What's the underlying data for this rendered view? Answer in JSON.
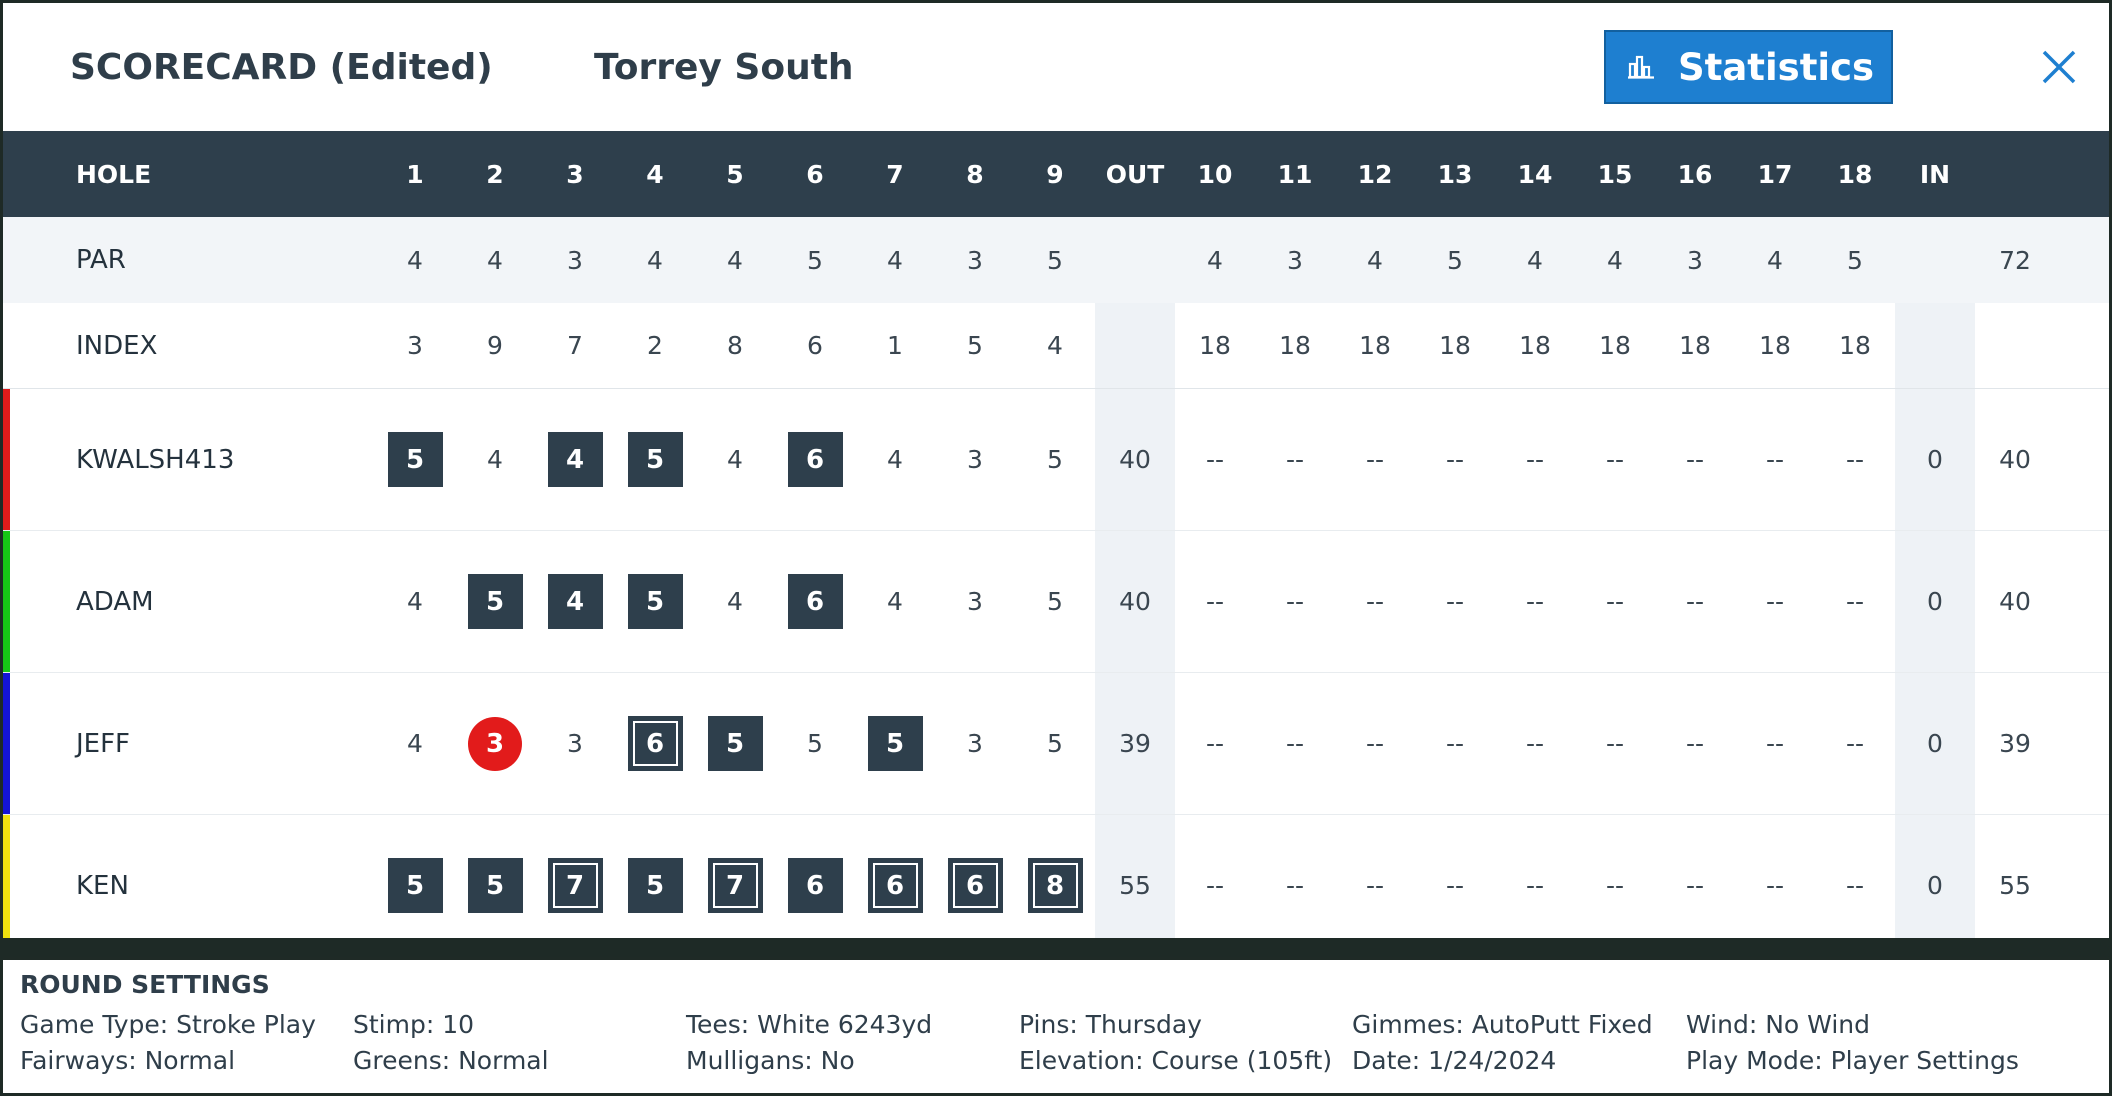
{
  "header": {
    "title": "SCORECARD (Edited)",
    "course": "Torrey South",
    "statistics_label": "Statistics",
    "statistics_icon": "bar-chart-icon",
    "close_icon": "close-icon",
    "accent_color": "#1e7fd0"
  },
  "columns": [
    "1",
    "2",
    "3",
    "4",
    "5",
    "6",
    "7",
    "8",
    "9",
    "OUT",
    "10",
    "11",
    "12",
    "13",
    "14",
    "15",
    "16",
    "17",
    "18",
    "IN",
    ""
  ],
  "rows": {
    "hole_label": "HOLE",
    "par": {
      "label": "PAR",
      "values": [
        "4",
        "4",
        "3",
        "4",
        "4",
        "5",
        "4",
        "3",
        "5",
        "",
        "4",
        "3",
        "4",
        "5",
        "4",
        "4",
        "3",
        "4",
        "5",
        "",
        "72"
      ]
    },
    "index": {
      "label": "INDEX",
      "values": [
        "3",
        "9",
        "7",
        "2",
        "8",
        "6",
        "1",
        "5",
        "4",
        "",
        "18",
        "18",
        "18",
        "18",
        "18",
        "18",
        "18",
        "18",
        "18",
        "",
        ""
      ]
    }
  },
  "players": [
    {
      "name": "KWALSH413",
      "color": "#e01b1b",
      "scores": [
        "5",
        "4",
        "4",
        "5",
        "4",
        "6",
        "4",
        "3",
        "5",
        "40",
        "--",
        "--",
        "--",
        "--",
        "--",
        "--",
        "--",
        "--",
        "--",
        "0",
        "40"
      ],
      "marks": [
        "box",
        "",
        "box",
        "box",
        "",
        "box",
        "",
        "",
        "",
        "",
        "",
        "",
        "",
        "",
        "",
        "",
        "",
        "",
        "",
        "",
        ""
      ]
    },
    {
      "name": "ADAM",
      "color": "#16c716",
      "scores": [
        "4",
        "5",
        "4",
        "5",
        "4",
        "6",
        "4",
        "3",
        "5",
        "40",
        "--",
        "--",
        "--",
        "--",
        "--",
        "--",
        "--",
        "--",
        "--",
        "0",
        "40"
      ],
      "marks": [
        "",
        "box",
        "box",
        "box",
        "",
        "box",
        "",
        "",
        "",
        "",
        "",
        "",
        "",
        "",
        "",
        "",
        "",
        "",
        "",
        "",
        ""
      ]
    },
    {
      "name": "JEFF",
      "color": "#1414d6",
      "scores": [
        "4",
        "3",
        "3",
        "6",
        "5",
        "5",
        "5",
        "3",
        "5",
        "39",
        "--",
        "--",
        "--",
        "--",
        "--",
        "--",
        "--",
        "--",
        "--",
        "0",
        "39"
      ],
      "marks": [
        "",
        "circle",
        "",
        "double",
        "box",
        "",
        "box",
        "",
        "",
        "",
        "",
        "",
        "",
        "",
        "",
        "",
        "",
        "",
        "",
        "",
        ""
      ]
    },
    {
      "name": "KEN",
      "color": "#f0e10f",
      "scores": [
        "5",
        "5",
        "7",
        "5",
        "7",
        "6",
        "6",
        "6",
        "8",
        "55",
        "--",
        "--",
        "--",
        "--",
        "--",
        "--",
        "--",
        "--",
        "--",
        "0",
        "55"
      ],
      "marks": [
        "box",
        "box",
        "double",
        "box",
        "double",
        "box",
        "double",
        "double",
        "double",
        "",
        "",
        "",
        "",
        "",
        "",
        "",
        "",
        "",
        "",
        "",
        ""
      ]
    }
  ],
  "round_settings": {
    "title": "ROUND SETTINGS",
    "game_type": "Game Type: Stroke Play",
    "fairways": "Fairways: Normal",
    "stimp": "Stimp: 10",
    "greens": "Greens: Normal",
    "tees": "Tees: White 6243yd",
    "mulligans": "Mulligans: No",
    "pins": "Pins: Thursday",
    "elevation": "Elevation: Course (105ft)",
    "gimmes": "Gimmes: AutoPutt Fixed",
    "date": "Date: 1/24/2024",
    "wind": "Wind: No Wind",
    "play_mode": "Play Mode: Player Settings"
  }
}
